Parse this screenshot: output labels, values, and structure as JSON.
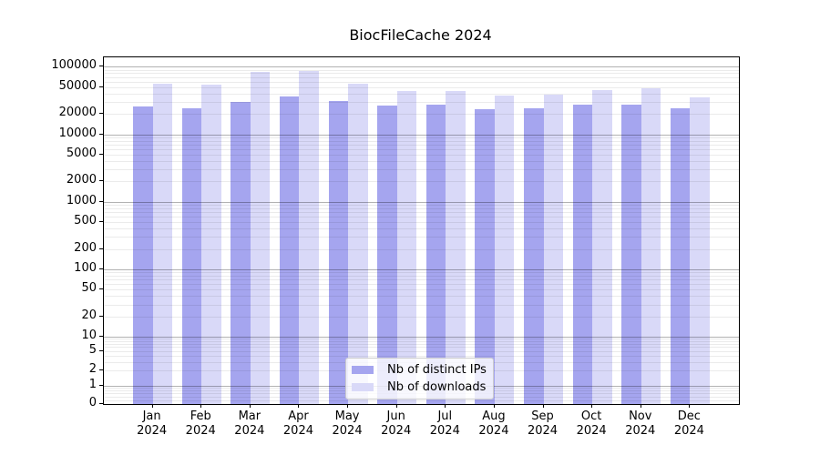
{
  "title": "BiocFileCache 2024",
  "x_year": "2024",
  "months": [
    "Jan",
    "Feb",
    "Mar",
    "Apr",
    "May",
    "Jun",
    "Jul",
    "Aug",
    "Sep",
    "Oct",
    "Nov",
    "Dec"
  ],
  "legend": {
    "items": [
      {
        "label": "Nb of distinct IPs",
        "color": "#a5a5ef"
      },
      {
        "label": "Nb of downloads",
        "color": "#d9d9f8"
      }
    ]
  },
  "chart_data": {
    "type": "bar",
    "title": "BiocFileCache 2024",
    "categories": [
      "Jan 2024",
      "Feb 2024",
      "Mar 2024",
      "Apr 2024",
      "May 2024",
      "Jun 2024",
      "Jul 2024",
      "Aug 2024",
      "Sep 2024",
      "Oct 2024",
      "Nov 2024",
      "Dec 2024"
    ],
    "series": [
      {
        "name": "Nb of distinct IPs",
        "color": "#a5a5ef",
        "values": [
          26000,
          24500,
          30000,
          36500,
          31500,
          26500,
          27500,
          23500,
          24000,
          27000,
          27000,
          24000
        ]
      },
      {
        "name": "Nb of downloads",
        "color": "#d9d9f8",
        "values": [
          56000,
          54000,
          84500,
          86000,
          55500,
          43500,
          44000,
          37500,
          39000,
          45000,
          48500,
          35000
        ]
      }
    ],
    "yscale": "log (1-2-5 labeled ticks, compressed linear segment below 1, zero baseline)",
    "ytick_labels": [
      "100000",
      "50000",
      "20000",
      "10000",
      "5000",
      "2000",
      "1000",
      "500",
      "200",
      "100",
      "50",
      "20",
      "10",
      "5",
      "2",
      "1",
      "0"
    ],
    "ytick_values": [
      100000,
      50000,
      20000,
      10000,
      5000,
      2000,
      1000,
      500,
      200,
      100,
      50,
      20,
      10,
      5,
      2,
      1,
      0
    ],
    "ylim": [
      0,
      137000
    ],
    "grid": true,
    "legend_position": "lower center"
  }
}
